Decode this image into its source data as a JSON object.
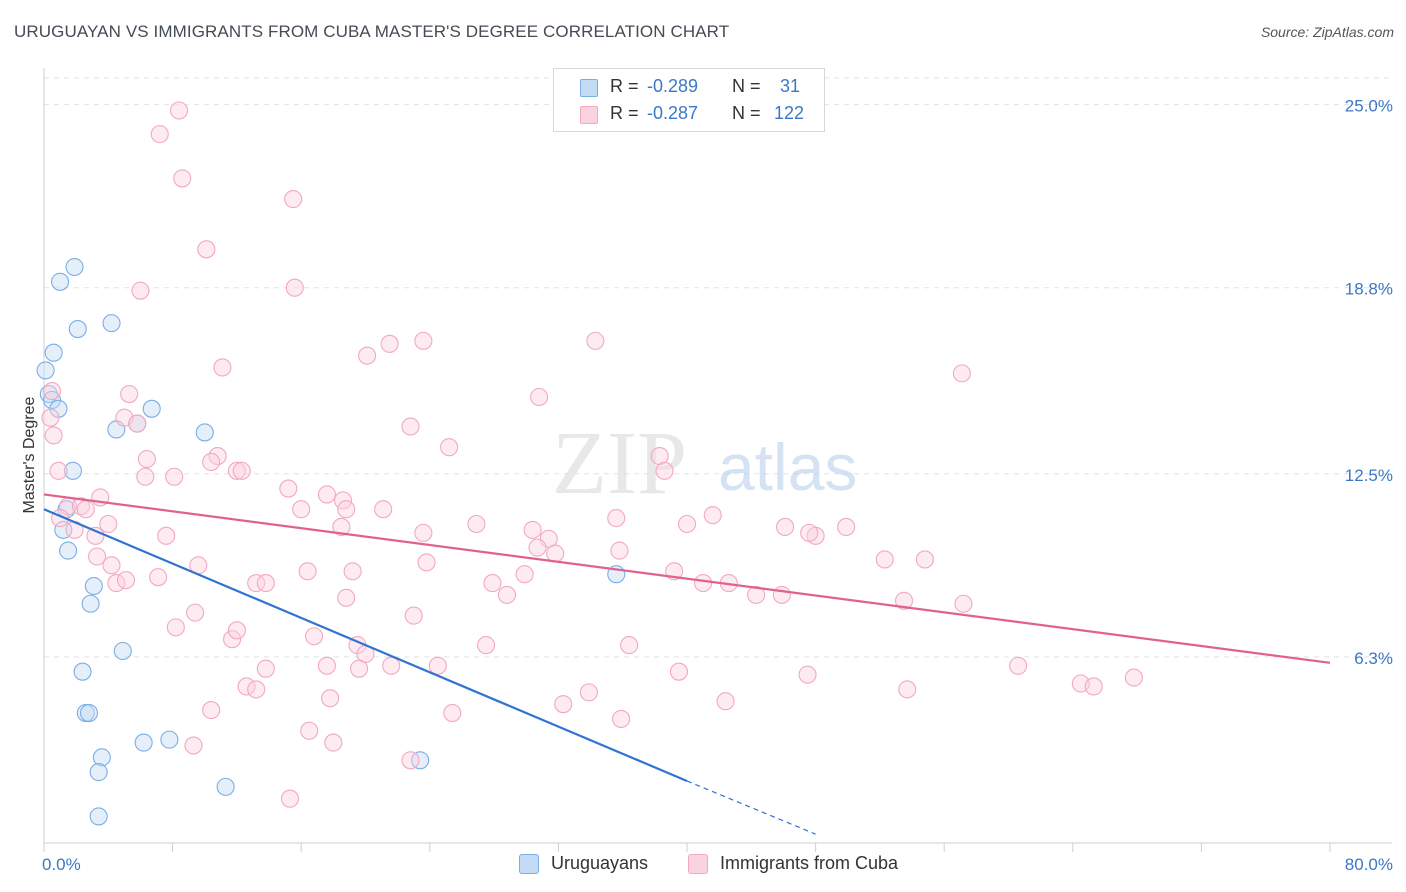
{
  "title": "URUGUAYAN VS IMMIGRANTS FROM CUBA MASTER'S DEGREE CORRELATION CHART",
  "source": "Source: ZipAtlas.com",
  "watermark": {
    "zip": "ZIP",
    "atlas": "atlas"
  },
  "legend": {
    "rows": [
      {
        "r_label": "R =",
        "r_value": "-0.289",
        "n_label": "N =",
        "n_value": "31",
        "color": "#a8c8ee"
      },
      {
        "r_label": "R =",
        "r_value": "-0.287",
        "n_label": "N =",
        "n_value": "122",
        "color": "#f4b8cc"
      }
    ]
  },
  "bottom_legend": [
    {
      "label": "Uruguayans",
      "color": "#a8c8ee"
    },
    {
      "label": "Immigrants from Cuba",
      "color": "#f4b8cc"
    }
  ],
  "chart_data": {
    "type": "scatter",
    "title": "URUGUAYAN VS IMMIGRANTS FROM CUBA MASTER'S DEGREE CORRELATION CHART",
    "xlabel": "",
    "ylabel": "Master's Degree",
    "xlim": [
      0,
      80
    ],
    "ylim": [
      0,
      25.9
    ],
    "x_ticks": [
      "0.0%",
      "80.0%"
    ],
    "y_ticks": [
      {
        "value": 6.3,
        "label": "6.3%"
      },
      {
        "value": 12.5,
        "label": "12.5%"
      },
      {
        "value": 18.8,
        "label": "18.8%"
      },
      {
        "value": 25.0,
        "label": "25.0%"
      }
    ],
    "grid": "horizontal dashed",
    "legend_position": "top-center",
    "series": [
      {
        "name": "Uruguayans",
        "color": "#7aaee6",
        "line_color": "#2f74d0",
        "trend": {
          "x0": 0,
          "y0": 11.3,
          "x1": 40,
          "y1": 2.1,
          "dash_to_x": 48,
          "dash_to_y": 0.3
        },
        "points": [
          [
            0.1,
            16.0
          ],
          [
            0.3,
            15.2
          ],
          [
            0.6,
            16.6
          ],
          [
            0.5,
            15.0
          ],
          [
            0.9,
            14.7
          ],
          [
            1.8,
            12.6
          ],
          [
            1.0,
            19.0
          ],
          [
            1.9,
            19.5
          ],
          [
            2.1,
            17.4
          ],
          [
            4.2,
            17.6
          ],
          [
            4.5,
            14.0
          ],
          [
            5.8,
            14.2
          ],
          [
            6.7,
            14.7
          ],
          [
            10.0,
            13.9
          ],
          [
            1.4,
            11.3
          ],
          [
            1.2,
            10.6
          ],
          [
            1.5,
            9.9
          ],
          [
            3.1,
            8.7
          ],
          [
            2.9,
            8.1
          ],
          [
            4.9,
            6.5
          ],
          [
            2.4,
            5.8
          ],
          [
            2.6,
            4.4
          ],
          [
            2.8,
            4.4
          ],
          [
            6.2,
            3.4
          ],
          [
            7.8,
            3.5
          ],
          [
            3.6,
            2.9
          ],
          [
            3.4,
            2.4
          ],
          [
            11.3,
            1.9
          ],
          [
            23.4,
            2.8
          ],
          [
            35.6,
            9.1
          ],
          [
            3.4,
            0.9
          ]
        ]
      },
      {
        "name": "Immigrants from Cuba",
        "color": "#f2a8c0",
        "line_color": "#e0628a",
        "trend": {
          "x0": 0,
          "y0": 11.8,
          "x1": 80,
          "y1": 6.1
        },
        "points": [
          [
            8.4,
            24.8
          ],
          [
            7.2,
            24.0
          ],
          [
            8.6,
            22.5
          ],
          [
            15.5,
            21.8
          ],
          [
            10.1,
            20.1
          ],
          [
            6.0,
            18.7
          ],
          [
            15.6,
            18.8
          ],
          [
            11.1,
            16.1
          ],
          [
            20.1,
            16.5
          ],
          [
            21.5,
            16.9
          ],
          [
            23.6,
            17.0
          ],
          [
            34.3,
            17.0
          ],
          [
            57.1,
            15.9
          ],
          [
            0.5,
            15.3
          ],
          [
            5.3,
            15.2
          ],
          [
            30.8,
            15.1
          ],
          [
            5.0,
            14.4
          ],
          [
            5.8,
            14.2
          ],
          [
            22.8,
            14.1
          ],
          [
            0.6,
            13.8
          ],
          [
            25.2,
            13.4
          ],
          [
            6.4,
            13.0
          ],
          [
            10.8,
            13.1
          ],
          [
            10.4,
            12.9
          ],
          [
            12.0,
            12.6
          ],
          [
            12.3,
            12.6
          ],
          [
            38.3,
            13.1
          ],
          [
            0.9,
            12.6
          ],
          [
            6.3,
            12.4
          ],
          [
            8.1,
            12.4
          ],
          [
            38.6,
            12.6
          ],
          [
            15.2,
            12.0
          ],
          [
            17.6,
            11.8
          ],
          [
            18.6,
            11.6
          ],
          [
            1.5,
            11.4
          ],
          [
            2.3,
            11.4
          ],
          [
            3.5,
            11.7
          ],
          [
            2.6,
            11.3
          ],
          [
            1.0,
            11.0
          ],
          [
            16.0,
            11.3
          ],
          [
            18.8,
            11.3
          ],
          [
            21.1,
            11.3
          ],
          [
            35.6,
            11.0
          ],
          [
            41.6,
            11.1
          ],
          [
            1.9,
            10.6
          ],
          [
            3.2,
            10.4
          ],
          [
            4.0,
            10.8
          ],
          [
            7.6,
            10.4
          ],
          [
            18.5,
            10.7
          ],
          [
            23.6,
            10.5
          ],
          [
            26.9,
            10.8
          ],
          [
            30.4,
            10.6
          ],
          [
            31.4,
            10.3
          ],
          [
            40.0,
            10.8
          ],
          [
            46.1,
            10.7
          ],
          [
            48.0,
            10.4
          ],
          [
            47.6,
            10.5
          ],
          [
            49.9,
            10.7
          ],
          [
            3.3,
            9.7
          ],
          [
            4.2,
            9.4
          ],
          [
            9.6,
            9.4
          ],
          [
            16.4,
            9.2
          ],
          [
            19.2,
            9.2
          ],
          [
            23.8,
            9.5
          ],
          [
            30.7,
            10.0
          ],
          [
            31.8,
            9.8
          ],
          [
            35.8,
            9.9
          ],
          [
            52.3,
            9.6
          ],
          [
            54.8,
            9.6
          ],
          [
            4.5,
            8.8
          ],
          [
            5.1,
            8.9
          ],
          [
            7.1,
            9.0
          ],
          [
            13.2,
            8.8
          ],
          [
            13.8,
            8.8
          ],
          [
            27.9,
            8.8
          ],
          [
            28.8,
            8.4
          ],
          [
            29.9,
            9.1
          ],
          [
            39.2,
            9.2
          ],
          [
            41.0,
            8.8
          ],
          [
            42.6,
            8.8
          ],
          [
            44.3,
            8.4
          ],
          [
            45.9,
            8.4
          ],
          [
            53.5,
            8.2
          ],
          [
            57.2,
            8.1
          ],
          [
            18.8,
            8.3
          ],
          [
            9.4,
            7.8
          ],
          [
            11.7,
            6.9
          ],
          [
            23.0,
            7.7
          ],
          [
            8.2,
            7.3
          ],
          [
            12.0,
            7.2
          ],
          [
            16.8,
            7.0
          ],
          [
            19.5,
            6.7
          ],
          [
            20.0,
            6.4
          ],
          [
            27.5,
            6.7
          ],
          [
            36.4,
            6.7
          ],
          [
            13.8,
            5.9
          ],
          [
            17.6,
            6.0
          ],
          [
            19.6,
            5.9
          ],
          [
            21.6,
            6.0
          ],
          [
            24.5,
            6.0
          ],
          [
            39.5,
            5.8
          ],
          [
            47.5,
            5.7
          ],
          [
            60.6,
            6.0
          ],
          [
            64.5,
            5.4
          ],
          [
            65.3,
            5.3
          ],
          [
            67.8,
            5.6
          ],
          [
            12.6,
            5.3
          ],
          [
            13.2,
            5.2
          ],
          [
            17.8,
            4.9
          ],
          [
            33.9,
            5.1
          ],
          [
            32.3,
            4.7
          ],
          [
            42.4,
            4.8
          ],
          [
            53.7,
            5.2
          ],
          [
            10.4,
            4.5
          ],
          [
            25.4,
            4.4
          ],
          [
            35.9,
            4.2
          ],
          [
            16.5,
            3.8
          ],
          [
            18.0,
            3.4
          ],
          [
            9.3,
            3.3
          ],
          [
            22.8,
            2.8
          ],
          [
            15.3,
            1.5
          ],
          [
            0.4,
            14.4
          ]
        ]
      }
    ]
  }
}
